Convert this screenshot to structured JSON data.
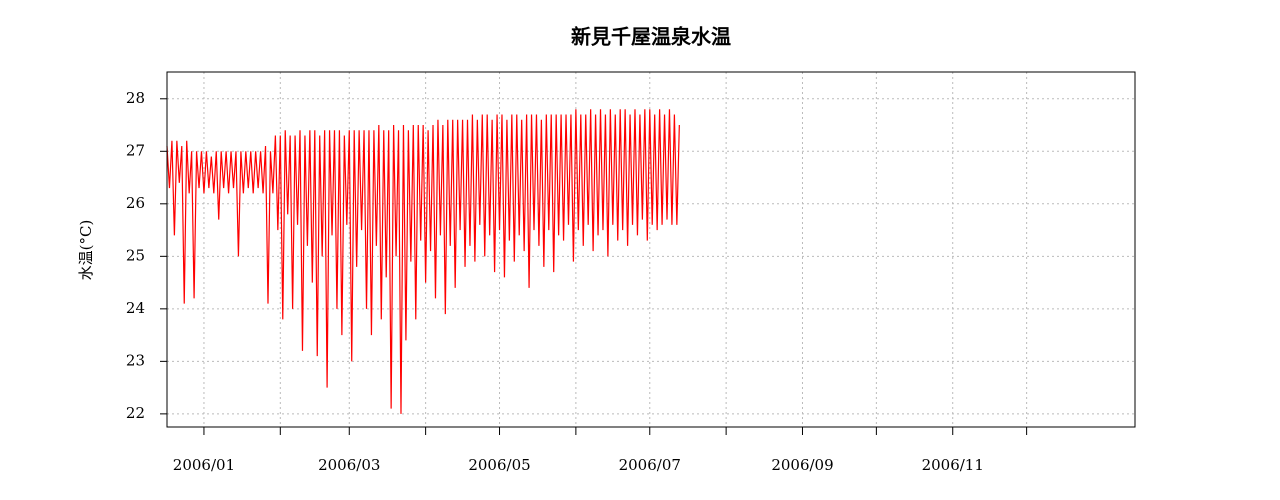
{
  "chart_data": {
    "type": "line",
    "title": "新見千屋温泉水温",
    "y_label": "水温(°C)",
    "x": [
      0,
      1,
      2,
      3,
      4,
      5,
      6,
      7,
      8,
      9,
      10,
      11,
      12,
      13,
      14,
      15,
      16,
      17,
      18,
      19,
      20,
      21,
      22,
      23,
      24,
      25,
      26,
      27,
      28,
      29,
      30,
      31,
      32,
      33,
      34,
      35,
      36,
      37,
      38,
      39,
      40,
      41,
      42,
      43,
      44,
      45,
      46,
      47,
      48,
      49,
      50,
      51,
      52,
      53,
      54,
      55,
      56,
      57,
      58,
      59,
      60,
      61,
      62,
      63,
      64,
      65,
      66,
      67,
      68,
      69,
      70,
      71,
      72,
      73,
      74,
      75,
      76,
      77,
      78,
      79,
      80,
      81,
      82,
      83,
      84,
      85,
      86,
      87,
      88,
      89,
      90,
      91,
      92,
      93,
      94,
      95,
      96,
      97,
      98,
      99,
      100,
      101,
      102,
      103,
      104,
      105,
      106,
      107,
      108,
      109,
      110,
      111,
      112,
      113,
      114,
      115,
      116,
      117,
      118,
      119,
      120,
      121,
      122,
      123,
      124,
      125,
      126,
      127,
      128,
      129,
      130,
      131,
      132,
      133,
      134,
      135,
      136,
      137,
      138,
      139,
      140,
      141,
      142,
      143,
      144,
      145,
      146,
      147,
      148,
      149,
      150,
      151,
      152,
      153,
      154,
      155,
      156,
      157,
      158,
      159,
      160,
      161,
      162,
      163,
      164,
      165,
      166,
      167,
      168,
      169,
      170,
      171,
      172,
      173,
      174,
      175,
      176,
      177,
      178,
      179,
      180,
      181,
      182,
      183,
      184,
      185,
      186,
      187,
      188,
      189,
      190,
      191,
      192,
      193,
      194,
      195,
      196,
      197,
      198,
      199,
      200,
      201,
      202,
      203,
      204,
      205,
      206,
      207,
      208
    ],
    "series": [
      {
        "color": "#ff0000",
        "values": [
          27.1,
          26.3,
          27.2,
          25.4,
          27.2,
          26.4,
          27.1,
          24.1,
          27.2,
          26.2,
          27.0,
          24.2,
          27.0,
          26.3,
          27.0,
          26.2,
          27.0,
          26.3,
          26.9,
          26.2,
          27.0,
          25.7,
          27.0,
          26.3,
          27.0,
          26.2,
          27.0,
          26.3,
          27.0,
          25.0,
          27.0,
          26.2,
          27.0,
          26.3,
          27.0,
          26.2,
          27.0,
          26.3,
          27.0,
          26.2,
          27.1,
          24.1,
          27.0,
          26.2,
          27.3,
          25.5,
          27.3,
          23.8,
          27.4,
          25.8,
          27.3,
          24.0,
          27.3,
          25.6,
          27.4,
          23.2,
          27.3,
          25.2,
          27.4,
          24.5,
          27.4,
          23.1,
          27.3,
          25.0,
          27.4,
          22.5,
          27.4,
          25.4,
          27.4,
          24.0,
          27.4,
          23.5,
          27.3,
          25.6,
          27.4,
          23.0,
          27.4,
          24.8,
          27.4,
          25.5,
          27.4,
          24.0,
          27.4,
          23.5,
          27.4,
          25.2,
          27.5,
          23.8,
          27.4,
          24.6,
          27.4,
          22.1,
          27.5,
          25.0,
          27.4,
          22.0,
          27.5,
          23.4,
          27.4,
          24.9,
          27.5,
          23.8,
          27.5,
          25.3,
          27.5,
          24.5,
          27.4,
          25.1,
          27.5,
          24.2,
          27.6,
          25.4,
          27.5,
          23.9,
          27.6,
          25.2,
          27.6,
          24.4,
          27.6,
          25.5,
          27.6,
          24.8,
          27.6,
          25.2,
          27.7,
          24.9,
          27.6,
          25.6,
          27.7,
          25.0,
          27.7,
          25.4,
          27.6,
          24.7,
          27.7,
          25.5,
          27.7,
          24.6,
          27.6,
          25.3,
          27.7,
          24.9,
          27.7,
          25.4,
          27.6,
          25.1,
          27.7,
          24.4,
          27.7,
          25.5,
          27.7,
          25.2,
          27.6,
          24.8,
          27.7,
          25.5,
          27.7,
          24.7,
          27.7,
          25.4,
          27.7,
          25.3,
          27.7,
          25.6,
          27.7,
          24.9,
          27.8,
          25.5,
          27.7,
          25.2,
          27.7,
          25.6,
          27.8,
          25.1,
          27.7,
          25.4,
          27.8,
          25.5,
          27.7,
          25.0,
          27.8,
          25.6,
          27.7,
          25.3,
          27.8,
          25.5,
          27.8,
          25.2,
          27.7,
          25.6,
          27.8,
          25.4,
          27.7,
          25.7,
          27.8,
          25.3,
          27.8,
          25.6,
          27.7,
          25.5,
          27.8,
          25.6,
          27.7,
          25.7,
          27.8,
          25.6,
          27.7,
          25.6,
          27.5
        ]
      }
    ],
    "xlim": [
      0,
      393
    ],
    "ylim": [
      21.75,
      28.51
    ],
    "xticks": [
      {
        "value": 15,
        "label": "2006/01"
      },
      {
        "value": 46,
        "label": null
      },
      {
        "value": 74,
        "label": "2006/03"
      },
      {
        "value": 105,
        "label": null
      },
      {
        "value": 135,
        "label": "2006/05"
      },
      {
        "value": 166,
        "label": null
      },
      {
        "value": 196,
        "label": "2006/07"
      },
      {
        "value": 227,
        "label": null
      },
      {
        "value": 258,
        "label": "2006/09"
      },
      {
        "value": 288,
        "label": null
      },
      {
        "value": 319,
        "label": "2006/11"
      },
      {
        "value": 349,
        "label": null
      }
    ],
    "yticks": [
      22,
      23,
      24,
      25,
      26,
      27,
      28
    ],
    "grid": true
  }
}
